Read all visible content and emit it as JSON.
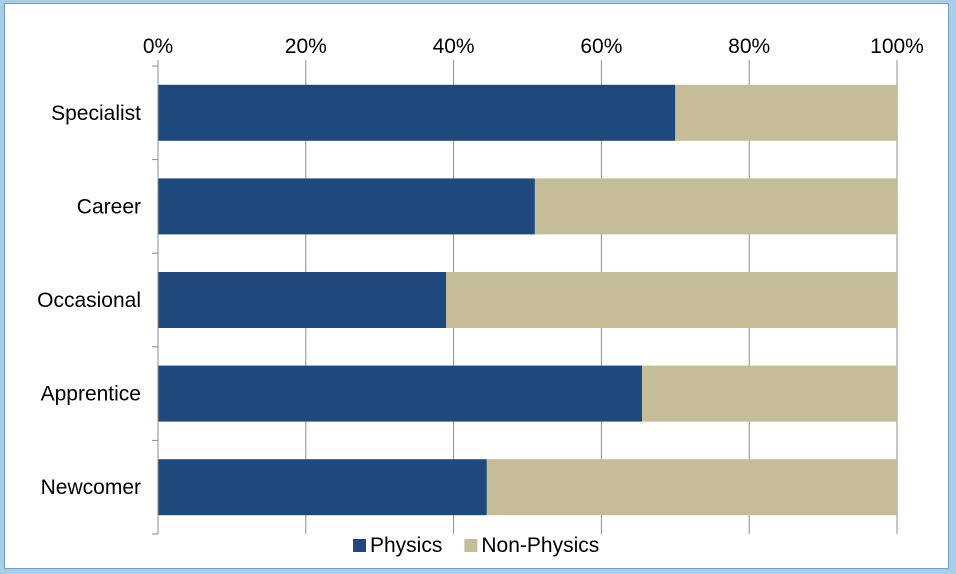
{
  "chart_data": {
    "type": "bar",
    "orientation": "horizontal",
    "stacked": true,
    "percent_stacked": true,
    "categories": [
      "Specialist",
      "Career",
      "Occasional",
      "Apprentice",
      "Newcomer"
    ],
    "series": [
      {
        "name": "Physics",
        "values": [
          70,
          51,
          39,
          65.5,
          44.5
        ],
        "color": "#1f497d"
      },
      {
        "name": "Non-Physics",
        "values": [
          30,
          49,
          61,
          34.5,
          55.5
        ],
        "color": "#c4bd97"
      }
    ],
    "x_ticks": [
      "0%",
      "20%",
      "40%",
      "60%",
      "80%",
      "100%"
    ],
    "xlim": [
      0,
      100
    ],
    "grid": "vertical",
    "legend": "bottom",
    "axis_position": "top"
  }
}
